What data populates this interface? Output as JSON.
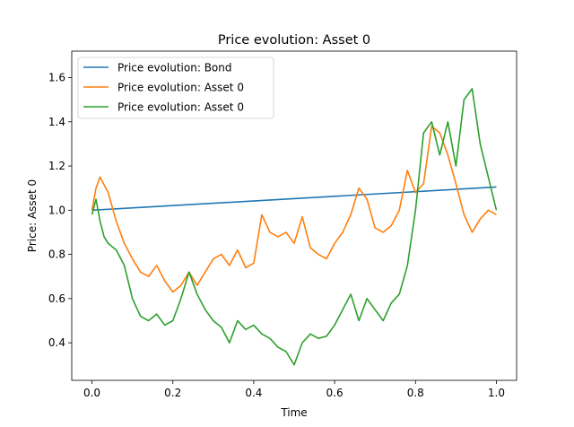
{
  "chart_data": {
    "type": "line",
    "title": "Price evolution: Asset 0",
    "xlabel": "Time",
    "ylabel": "Price: Asset 0",
    "xlim": [
      -0.05,
      1.05
    ],
    "ylim": [
      0.23,
      1.72
    ],
    "xticks": [
      "0.0",
      "0.2",
      "0.4",
      "0.6",
      "0.8",
      "1.0"
    ],
    "yticks": [
      "0.4",
      "0.6",
      "0.8",
      "1.0",
      "1.2",
      "1.4",
      "1.6"
    ],
    "grid": false,
    "legend_position": "top-left",
    "series": [
      {
        "name": "Price evolution: Bond",
        "color": "#1f77b4",
        "x": [
          0.0,
          1.0
        ],
        "y": [
          1.0,
          1.105
        ]
      },
      {
        "name": "Price evolution: Asset 0",
        "color": "#ff7f0e",
        "x": [
          0.0,
          0.01,
          0.02,
          0.04,
          0.06,
          0.08,
          0.1,
          0.12,
          0.14,
          0.16,
          0.18,
          0.2,
          0.22,
          0.24,
          0.26,
          0.28,
          0.3,
          0.32,
          0.34,
          0.36,
          0.38,
          0.4,
          0.42,
          0.44,
          0.46,
          0.48,
          0.5,
          0.52,
          0.54,
          0.56,
          0.58,
          0.6,
          0.62,
          0.64,
          0.66,
          0.68,
          0.7,
          0.72,
          0.74,
          0.76,
          0.78,
          0.8,
          0.82,
          0.84,
          0.86,
          0.88,
          0.9,
          0.92,
          0.94,
          0.96,
          0.98,
          1.0
        ],
        "y": [
          1.0,
          1.1,
          1.15,
          1.08,
          0.95,
          0.85,
          0.78,
          0.72,
          0.7,
          0.75,
          0.68,
          0.63,
          0.66,
          0.72,
          0.66,
          0.72,
          0.78,
          0.8,
          0.75,
          0.82,
          0.74,
          0.76,
          0.98,
          0.9,
          0.88,
          0.9,
          0.85,
          0.97,
          0.83,
          0.8,
          0.78,
          0.85,
          0.9,
          0.98,
          1.1,
          1.05,
          0.92,
          0.9,
          0.93,
          1.0,
          1.18,
          1.08,
          1.12,
          1.38,
          1.35,
          1.25,
          1.12,
          0.98,
          0.9,
          0.96,
          1.0,
          0.98
        ]
      },
      {
        "name": "Price evolution: Asset 0",
        "color": "#2ca02c",
        "x": [
          0.0,
          0.01,
          0.02,
          0.03,
          0.04,
          0.06,
          0.08,
          0.1,
          0.12,
          0.14,
          0.16,
          0.18,
          0.2,
          0.22,
          0.24,
          0.26,
          0.28,
          0.3,
          0.32,
          0.34,
          0.36,
          0.38,
          0.4,
          0.42,
          0.44,
          0.46,
          0.48,
          0.5,
          0.52,
          0.54,
          0.56,
          0.58,
          0.6,
          0.62,
          0.64,
          0.66,
          0.68,
          0.7,
          0.72,
          0.74,
          0.76,
          0.78,
          0.8,
          0.82,
          0.84,
          0.86,
          0.88,
          0.9,
          0.92,
          0.94,
          0.96,
          0.98,
          1.0
        ],
        "y": [
          0.98,
          1.05,
          0.95,
          0.88,
          0.85,
          0.82,
          0.75,
          0.6,
          0.52,
          0.5,
          0.53,
          0.48,
          0.5,
          0.6,
          0.72,
          0.62,
          0.55,
          0.5,
          0.47,
          0.4,
          0.5,
          0.46,
          0.48,
          0.44,
          0.42,
          0.38,
          0.36,
          0.3,
          0.4,
          0.44,
          0.42,
          0.43,
          0.48,
          0.55,
          0.62,
          0.5,
          0.6,
          0.55,
          0.5,
          0.58,
          0.62,
          0.75,
          1.0,
          1.35,
          1.4,
          1.25,
          1.4,
          1.2,
          1.5,
          1.55,
          1.3,
          1.15,
          1.0
        ]
      }
    ]
  }
}
